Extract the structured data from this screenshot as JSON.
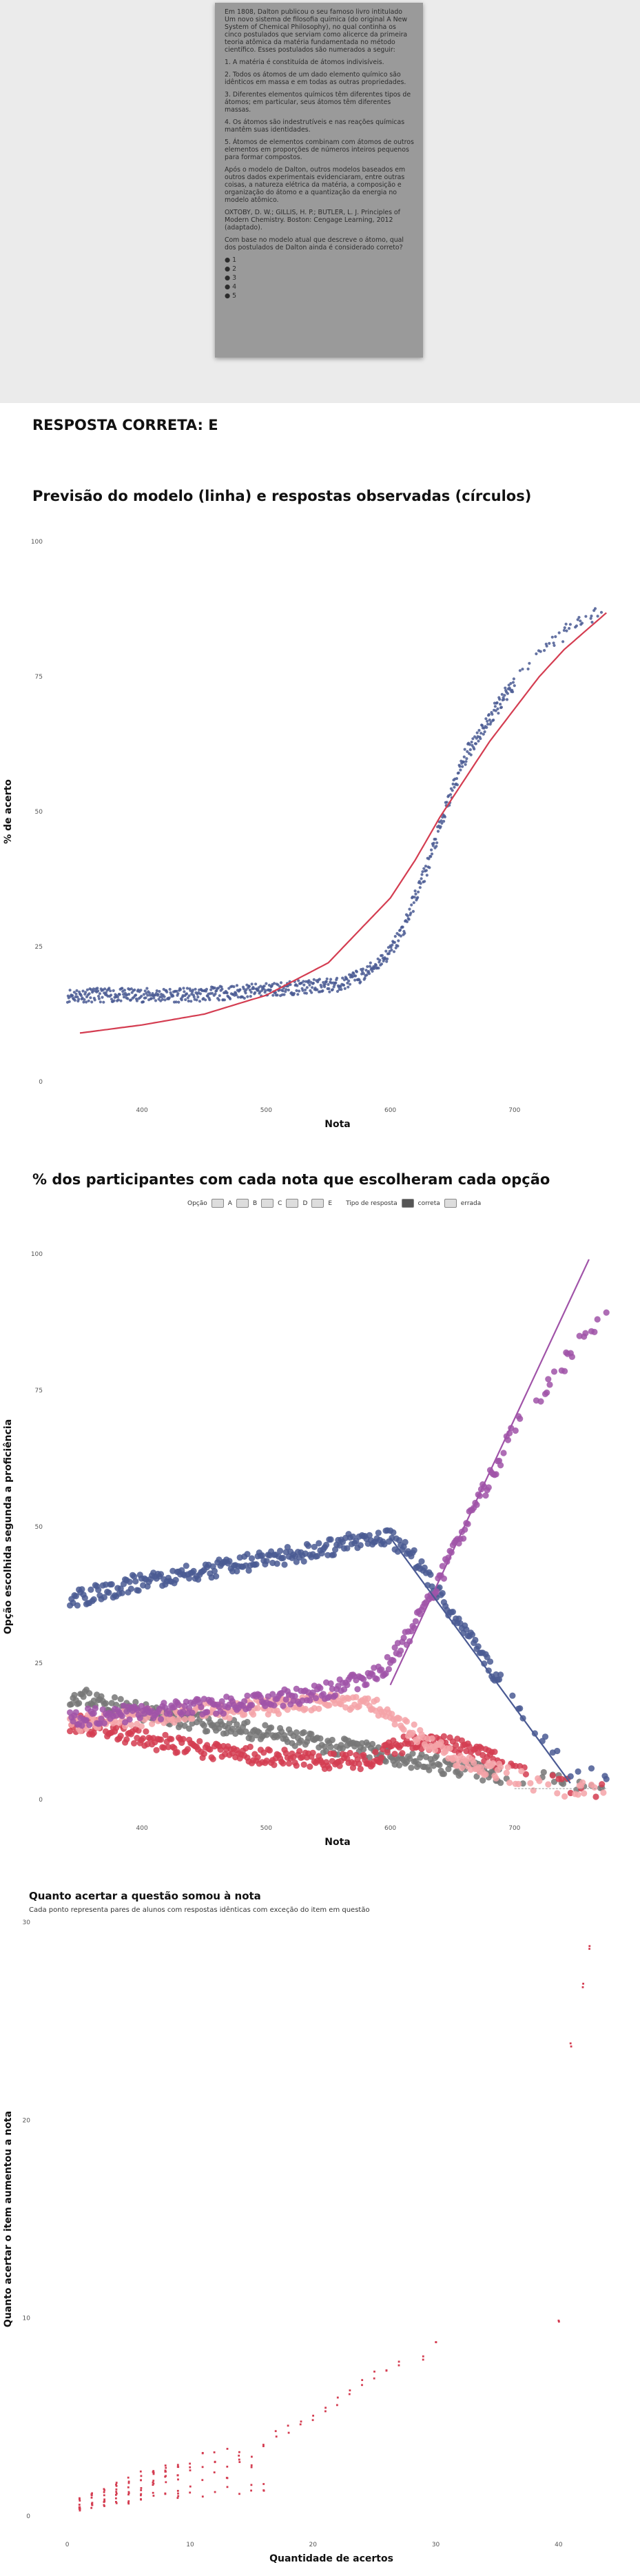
{
  "question_photo": {
    "paragraphs": [
      "Em 1808, Dalton publicou o seu famoso livro intitulado Um novo sistema de filosofia química (do original A New System of Chemical Philosophy), no qual continha os cinco postulados que serviam como alicerce da primeira teoria atômica da matéria fundamentada no método científico. Esses postulados são numerados a seguir:",
      "1. A matéria é constituída de átomos indivisíveis.",
      "2. Todos os átomos de um dado elemento químico são idênticos em massa e em todas as outras propriedades.",
      "3. Diferentes elementos químicos têm diferentes tipos de átomos; em particular, seus átomos têm diferentes massas.",
      "4. Os átomos são indestrutíveis e nas reações químicas mantêm suas identidades.",
      "5. Átomos de elementos combinam com átomos de outros elementos em proporções de números inteiros pequenos para formar compostos.",
      "Após o modelo de Dalton, outros modelos baseados em outros dados experimentais evidenciaram, entre outras coisas, a natureza elétrica da matéria, a composição e organização do átomo e a quantização da energia no modelo atômico.",
      "OXTOBY, D. W.; GILLIS, H. P.; BUTLER, L. J. Principles of Modern Chemistry. Boston: Cengage Learning, 2012 (adaptado).",
      "Com base no modelo atual que descreve o átomo, qual dos postulados de Dalton ainda é considerado correto?"
    ],
    "options": [
      "1",
      "2",
      "3",
      "4",
      "5"
    ]
  },
  "answer_text": "RESPOSTA CORRETA: E",
  "chart_data": [
    {
      "type": "scatter",
      "title": "Previsão do modelo (linha) e respostas observadas (círculos)",
      "xlabel": "Nota",
      "ylabel": "% de acerto",
      "xlim": [
        330,
        785
      ],
      "ylim": [
        0,
        100
      ],
      "xticks": [
        400,
        500,
        600,
        700
      ],
      "yticks": [
        0,
        25,
        50,
        75,
        100
      ],
      "grid": false,
      "observed_series": {
        "name": "observado",
        "color": "#4a5a93",
        "x": [
          350,
          380,
          410,
          440,
          470,
          500,
          530,
          560,
          580,
          600,
          610,
          620,
          630,
          640,
          650,
          660,
          670,
          680,
          690,
          700,
          710,
          720,
          730,
          740,
          750,
          760,
          775
        ],
        "y": [
          16,
          16,
          16,
          16,
          16.5,
          17,
          17.5,
          18,
          20,
          24,
          28,
          34,
          40,
          47,
          54,
          60,
          64,
          67,
          71,
          74,
          76,
          79,
          81,
          83,
          84,
          86,
          89
        ]
      },
      "model_series": {
        "name": "modelo",
        "color": "#d43d51",
        "x": [
          350,
          400,
          450,
          500,
          550,
          600,
          620,
          640,
          660,
          680,
          700,
          720,
          740,
          760,
          775
        ],
        "y": [
          9,
          10.5,
          12.5,
          16,
          22,
          34,
          41,
          49,
          56,
          63,
          69,
          75,
          80,
          84,
          87
        ]
      }
    },
    {
      "type": "scatter",
      "title": "% dos participantes com cada nota que escolheram cada opção",
      "xlabel": "Nota",
      "ylabel": "Opção escolhida segunda a proficiência",
      "xlim": [
        330,
        785
      ],
      "ylim": [
        0,
        100
      ],
      "xticks": [
        400,
        500,
        600,
        700
      ],
      "yticks": [
        0,
        25,
        50,
        75,
        100
      ],
      "legend_position": "top-center",
      "legend": {
        "option_title": "Opção",
        "options": [
          "A",
          "B",
          "C",
          "D",
          "E"
        ],
        "type_title": "Tipo de resposta",
        "types": [
          "correta",
          "errada"
        ]
      },
      "series": [
        {
          "name": "A",
          "color": "#f4a3a8",
          "x": [
            350,
            400,
            450,
            500,
            550,
            580,
            600,
            620,
            650,
            700,
            740,
            775
          ],
          "y": [
            14,
            15,
            16,
            17,
            18,
            18,
            16,
            12,
            8,
            4,
            2,
            1
          ]
        },
        {
          "name": "B",
          "color": "#d43d51",
          "x": [
            350,
            400,
            450,
            500,
            550,
            580,
            600,
            620,
            650,
            700,
            740,
            775
          ],
          "y": [
            14,
            11,
            9,
            8,
            7,
            7,
            9,
            11,
            10,
            6,
            3,
            1
          ]
        },
        {
          "name": "C",
          "color": "#4a5a93",
          "x": [
            350,
            400,
            450,
            500,
            550,
            580,
            600,
            620,
            650,
            700,
            740,
            775
          ],
          "y": [
            37,
            40,
            42,
            44,
            46,
            48,
            48,
            44,
            34,
            18,
            6,
            3
          ]
        },
        {
          "name": "D",
          "color": "#777777",
          "x": [
            350,
            400,
            450,
            500,
            550,
            580,
            600,
            620,
            650,
            700,
            740,
            775
          ],
          "y": [
            19,
            16,
            14,
            12,
            10,
            9,
            8,
            7,
            6,
            4,
            3,
            2
          ]
        },
        {
          "name": "E",
          "color": "#a053a8",
          "x": [
            350,
            400,
            450,
            500,
            550,
            580,
            600,
            620,
            650,
            700,
            740,
            775
          ],
          "y": [
            15,
            16,
            17,
            18,
            20,
            22,
            25,
            32,
            45,
            68,
            80,
            90
          ]
        }
      ],
      "fit_lines": [
        {
          "name": "E",
          "color": "#a053a8",
          "x": [
            600,
            760
          ],
          "y": [
            21,
            99
          ]
        },
        {
          "name": "C",
          "color": "#4a5a93",
          "x": [
            600,
            745
          ],
          "y": [
            48,
            3
          ]
        }
      ]
    },
    {
      "type": "scatter",
      "title": "Quanto acertar a questão somou à nota",
      "subtitle": "Cada ponto representa pares de alunos com respostas idênticas com exceção do item em questão",
      "xlabel": "Quantidade de acertos",
      "ylabel": "Quanto acertar o item aumentou a nota",
      "xlim": [
        -2,
        45
      ],
      "ylim": [
        0,
        30
      ],
      "xticks": [
        0,
        10,
        20,
        30,
        40
      ],
      "yticks": [
        0,
        10,
        20,
        30
      ],
      "color": "#d43d51",
      "x": [
        1,
        2,
        3,
        4,
        5,
        6,
        7,
        8,
        9,
        10,
        11,
        12,
        13,
        14,
        15,
        16,
        17,
        18,
        19,
        20,
        21,
        22,
        23,
        24,
        25,
        26,
        27,
        29,
        30,
        40,
        41,
        42,
        42.5
      ],
      "y": [
        0.9,
        1.2,
        1.5,
        1.8,
        2.0,
        2.3,
        2.4,
        2.6,
        2.8,
        3.0,
        3.2,
        3.3,
        3.5,
        3.7,
        3.8,
        4.0,
        4.3,
        4.6,
        4.8,
        5.2,
        5.6,
        6.0,
        6.5,
        7.0,
        7.3,
        7.6,
        8.0,
        8.3,
        9.0,
        10.0,
        24.0,
        27.0,
        29.0
      ]
    }
  ]
}
